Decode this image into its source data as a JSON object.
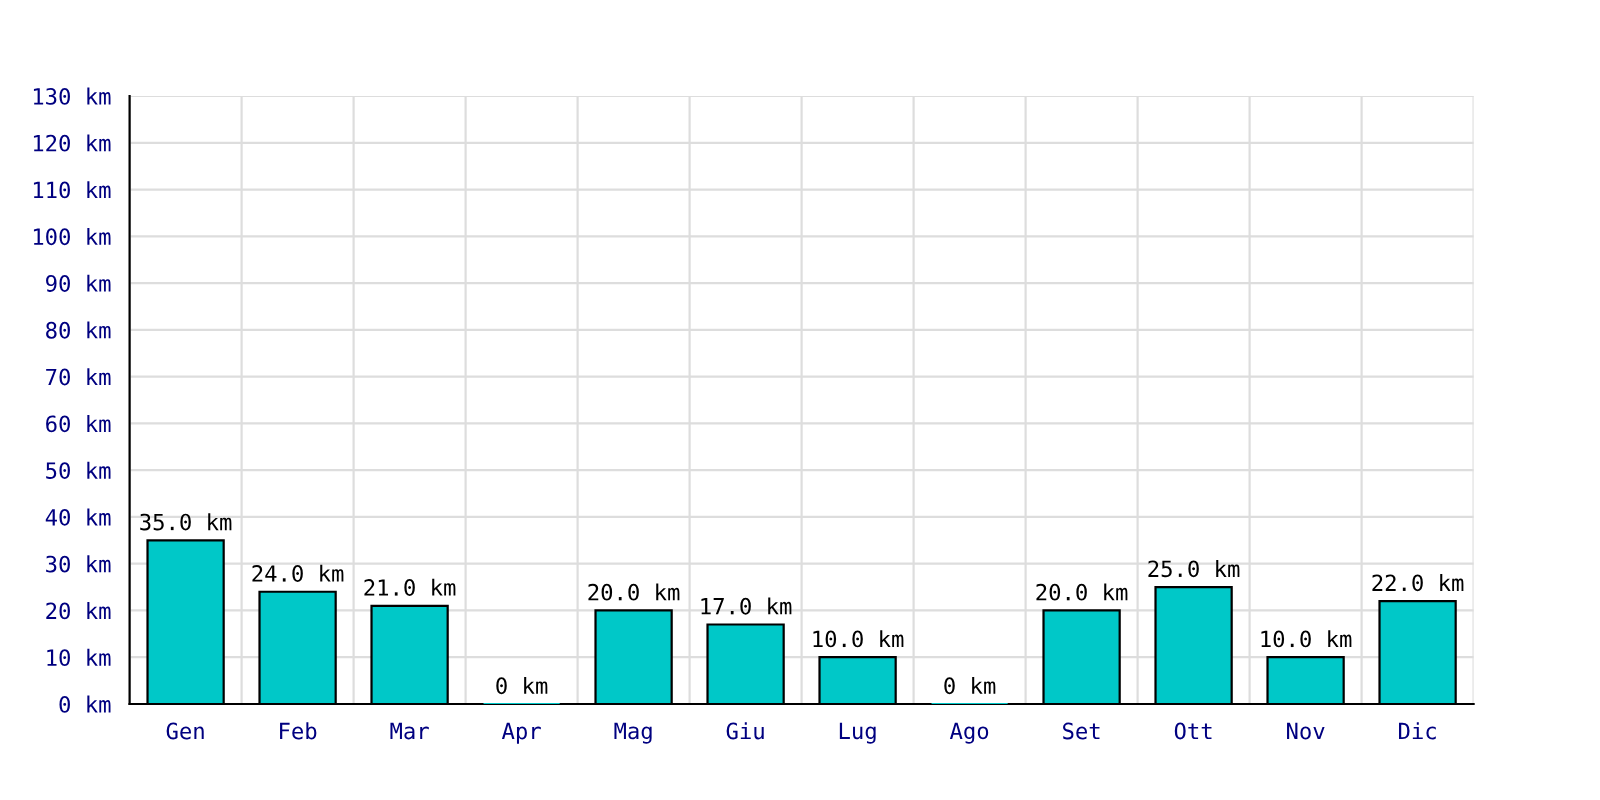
{
  "chart_data": {
    "type": "bar",
    "categories": [
      "Gen",
      "Feb",
      "Mar",
      "Apr",
      "Mag",
      "Giu",
      "Lug",
      "Ago",
      "Set",
      "Ott",
      "Nov",
      "Dic"
    ],
    "values": [
      35,
      24,
      21,
      0,
      20,
      17,
      10,
      0,
      20,
      25,
      10,
      22
    ],
    "value_labels": [
      "35.0 km",
      "24.0 km",
      "21.0 km",
      "0 km",
      "20.0 km",
      "17.0 km",
      "10.0 km",
      "0 km",
      "20.0 km",
      "25.0 km",
      "10.0 km",
      "22.0 km"
    ],
    "color": "#00c8c8",
    "ylim": [
      0,
      130
    ],
    "yticks": [
      {
        "value": 0,
        "label": "0 km"
      },
      {
        "value": 10,
        "label": "10 km"
      },
      {
        "value": 20,
        "label": "20 km"
      },
      {
        "value": 30,
        "label": "30 km"
      },
      {
        "value": 40,
        "label": "40 km"
      },
      {
        "value": 50,
        "label": "50 km"
      },
      {
        "value": 60,
        "label": "60 km"
      },
      {
        "value": 70,
        "label": "70 km"
      },
      {
        "value": 80,
        "label": "80 km"
      },
      {
        "value": 90,
        "label": "90 km"
      },
      {
        "value": 100,
        "label": "100 km"
      },
      {
        "value": 110,
        "label": "110 km"
      },
      {
        "value": 120,
        "label": "120 km"
      },
      {
        "value": 130,
        "label": "130 km"
      }
    ],
    "grid": true
  }
}
